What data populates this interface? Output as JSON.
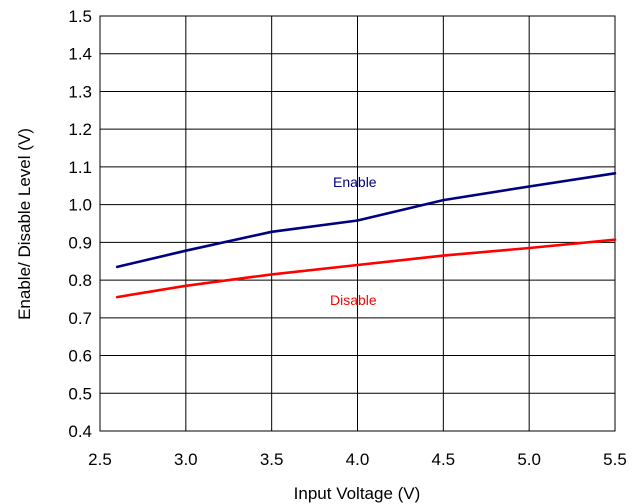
{
  "chart_data": {
    "type": "line",
    "xlabel": "Input Voltage (V)",
    "ylabel": "Enable/ Disable Level (V)",
    "xlim": [
      2.5,
      5.5
    ],
    "ylim": [
      0.4,
      1.5
    ],
    "x_ticks": [
      "2.5",
      "3.0",
      "3.5",
      "4.0",
      "4.5",
      "5.0",
      "5.5"
    ],
    "y_ticks": [
      "0.4",
      "0.5",
      "0.6",
      "0.7",
      "0.8",
      "0.9",
      "1.0",
      "1.1",
      "1.2",
      "1.3",
      "1.4",
      "1.5"
    ],
    "grid": true,
    "series": [
      {
        "name": "Enable",
        "color": "#000080",
        "x": [
          2.6,
          3.0,
          3.5,
          4.0,
          4.5,
          5.0,
          5.5
        ],
        "y": [
          0.835,
          0.878,
          0.928,
          0.958,
          1.012,
          1.048,
          1.083
        ]
      },
      {
        "name": "Disable",
        "color": "#ff0000",
        "x": [
          2.6,
          3.0,
          3.5,
          4.0,
          4.5,
          5.0,
          5.5
        ],
        "y": [
          0.755,
          0.785,
          0.815,
          0.84,
          0.865,
          0.885,
          0.907
        ]
      }
    ]
  }
}
